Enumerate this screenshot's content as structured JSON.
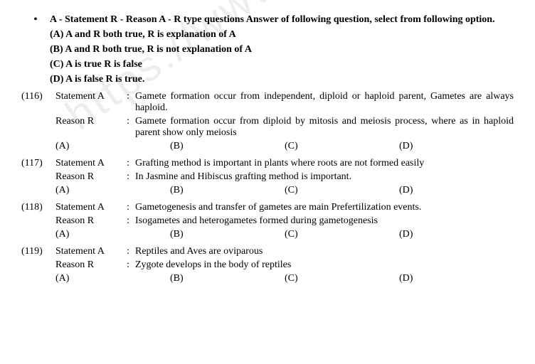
{
  "intro": {
    "bullet": "•",
    "text": "A - Statement R - Reason A - R type questions Answer of following question, select from following option."
  },
  "options": {
    "a": "(A) A and R both true, R is explanation of A",
    "b": "(B) A and R both true, R is not explanation of A",
    "c": "(C) A is true R is false",
    "d": "(D) A is false R is true."
  },
  "labels": {
    "statement": "Statement A",
    "reason": "Reason R",
    "colon": ":"
  },
  "answers": {
    "a": "(A)",
    "b": "(B)",
    "c": "(C)",
    "d": "(D)"
  },
  "questions": [
    {
      "num": "(116)",
      "statement": "Gamete formation occur from independent, diploid or haploid parent, Gametes are always haploid.",
      "reason": "Gamete formation occur from diploid by mitosis and meiosis process, where as in haploid parent show only meiosis"
    },
    {
      "num": "(117)",
      "statement": "Grafting method is important in plants where roots are not formed easily",
      "reason": "In Jasmine and Hibiscus grafting method is important."
    },
    {
      "num": "(118)",
      "statement": "Gametogenesis and transfer of gametes are main Prefertilization events.",
      "reason": "Isogametes and heterogametes formed during gametogenesis"
    },
    {
      "num": "(119)",
      "statement": "Reptiles and Aves are oviparous",
      "reason": "Zygote develops in the body of reptiles"
    }
  ],
  "watermark": "https://www.st"
}
